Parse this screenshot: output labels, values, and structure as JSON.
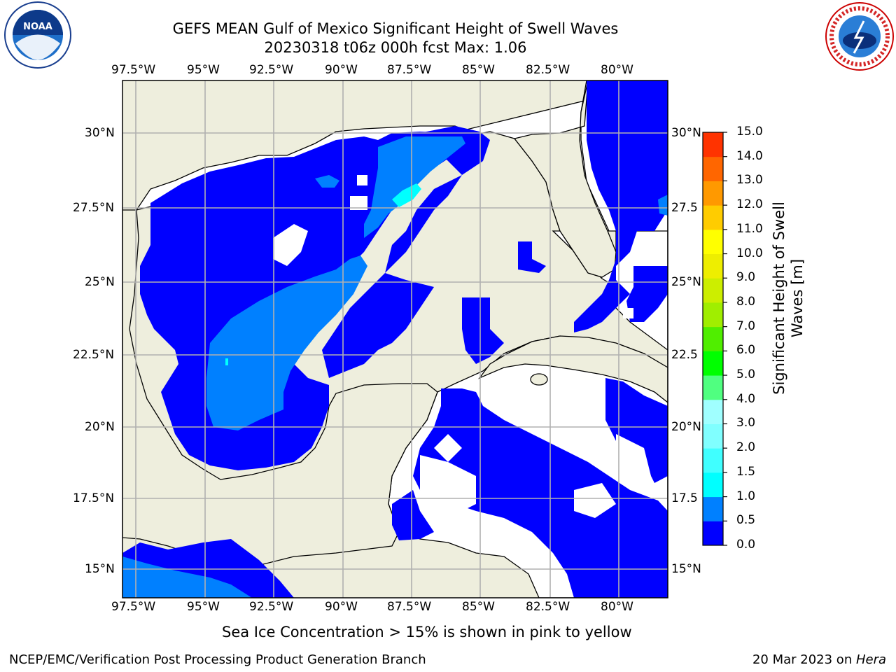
{
  "header": {
    "title": "GEFS MEAN Gulf of Mexico Significant Height of Swell Waves",
    "subtitle": "20230318 t06z 000h fcst   Max: 1.06"
  },
  "logos": {
    "noaa": {
      "text": "NOAA",
      "ring_text": "NATIONAL OCEANIC AND ATMOSPHERIC ADMINISTRATION · U.S. DEPARTMENT OF COMMERCE"
    },
    "nws": {
      "ring_text": "NATIONAL WEATHER SERVICE"
    }
  },
  "map": {
    "lon_ticks": [
      "97.5°W",
      "95°W",
      "92.5°W",
      "90°W",
      "87.5°W",
      "85°W",
      "82.5°W",
      "80°W"
    ],
    "lat_ticks_left": [
      "30°N",
      "27.5°N",
      "25°N",
      "22.5°N",
      "20°N",
      "17.5°N",
      "15°N"
    ],
    "lat_ticks_right": [
      "30°N",
      "27.5",
      "25°N",
      "22.5",
      "20°N",
      "17.5",
      "15°N"
    ],
    "colors": {
      "land": "#eeeedd",
      "water_low": "#0000ff",
      "water_mid": "#0080ff",
      "grid": "#b0b0b0"
    }
  },
  "colorbar": {
    "label_line1": "Significant Height of Swell",
    "label_line2": "Waves [m]",
    "ticks": [
      "0.0",
      "0.5",
      "1.0",
      "1.5",
      "2.0",
      "3.0",
      "4.0",
      "5.0",
      "6.0",
      "7.0",
      "8.0",
      "9.0",
      "10.0",
      "11.0",
      "12.0",
      "13.0",
      "14.0",
      "15.0"
    ],
    "colors": [
      "#0000ff",
      "#0080ff",
      "#00ffff",
      "#40ffff",
      "#80ffff",
      "#a0ffff",
      "#50ff80",
      "#00ff00",
      "#50ee00",
      "#a0ee00",
      "#ccee00",
      "#eeee00",
      "#ffff00",
      "#ffcc00",
      "#ff9900",
      "#ff6600",
      "#ff3300",
      "#ff0000"
    ]
  },
  "note": "Sea Ice Concentration > 15% is shown in pink to yellow",
  "footer": {
    "left": "NCEP/EMC/Verification Post Processing Product Generation Branch",
    "right_date": "20 Mar 2023 on ",
    "right_host": "Hera"
  }
}
